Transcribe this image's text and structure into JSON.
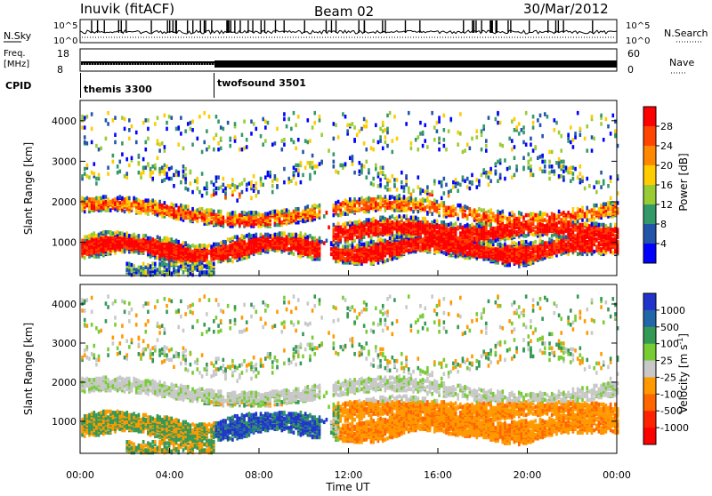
{
  "header": {
    "station": "Inuvik (fitACF)",
    "beam": "Beam 02",
    "date": "30/Mar/2012"
  },
  "top_panels": {
    "nsky_label": "N.Sky",
    "nsearch_label": "N.Search",
    "noise_ticks": [
      "10^5",
      "10^0"
    ],
    "freq_label_line1": "Freq.",
    "freq_label_line2": "[MHz]",
    "freq_ticks": [
      "18",
      "8"
    ],
    "nave_label": "Nave",
    "nave_ticks": [
      "60",
      "0"
    ],
    "cpid_label": "CPID",
    "cpid_segments": [
      {
        "name": "themis 3300",
        "start_hour": 0,
        "end_hour": 6
      },
      {
        "name": "twofsound 3501",
        "start_hour": 6,
        "end_hour": 24
      }
    ]
  },
  "chart_data": [
    {
      "type": "heatmap",
      "title": "",
      "xlabel": "Time UT",
      "ylabel": "Slant Range [km]",
      "xlim": [
        0,
        24
      ],
      "ylim": [
        180,
        4500
      ],
      "x_ticks": [
        "00:00",
        "04:00",
        "08:00",
        "12:00",
        "16:00",
        "20:00",
        "00:00"
      ],
      "y_ticks": [
        1000,
        2000,
        3000,
        4000
      ],
      "colorbar": {
        "label": "Power [dB]",
        "ticks": [
          "28",
          "24",
          "20",
          "16",
          "12",
          "8",
          "4"
        ],
        "colors": [
          "#ff0000",
          "#ff4400",
          "#ff8800",
          "#ffcc00",
          "#99cc33",
          "#339966",
          "#2255aa",
          "#0000ff"
        ],
        "range": [
          0,
          30
        ]
      }
    },
    {
      "type": "heatmap",
      "title": "",
      "xlabel": "Time UT",
      "ylabel": "Slant Range [km]",
      "xlim": [
        0,
        24
      ],
      "ylim": [
        180,
        4500
      ],
      "x_ticks": [
        "00:00",
        "04:00",
        "08:00",
        "12:00",
        "16:00",
        "20:00",
        "00:00"
      ],
      "y_ticks": [
        1000,
        2000,
        3000,
        4000
      ],
      "colorbar": {
        "label": "Velocity [m s",
        "label_sup": "-1",
        "label_end": "]",
        "ticks": [
          "1000",
          "500",
          "100",
          "25",
          "-25",
          "-100",
          "-500",
          "-1000"
        ],
        "colors": [
          "#2233cc",
          "#2266aa",
          "#339955",
          "#77cc33",
          "#c8c8c8",
          "#ff9900",
          "#ff6600",
          "#ff2200",
          "#ff0000"
        ],
        "range": [
          -1000,
          1000
        ]
      }
    }
  ],
  "xaxis": {
    "label": "Time UT",
    "ticks": [
      "00:00",
      "04:00",
      "08:00",
      "12:00",
      "16:00",
      "20:00",
      "00:00"
    ]
  }
}
